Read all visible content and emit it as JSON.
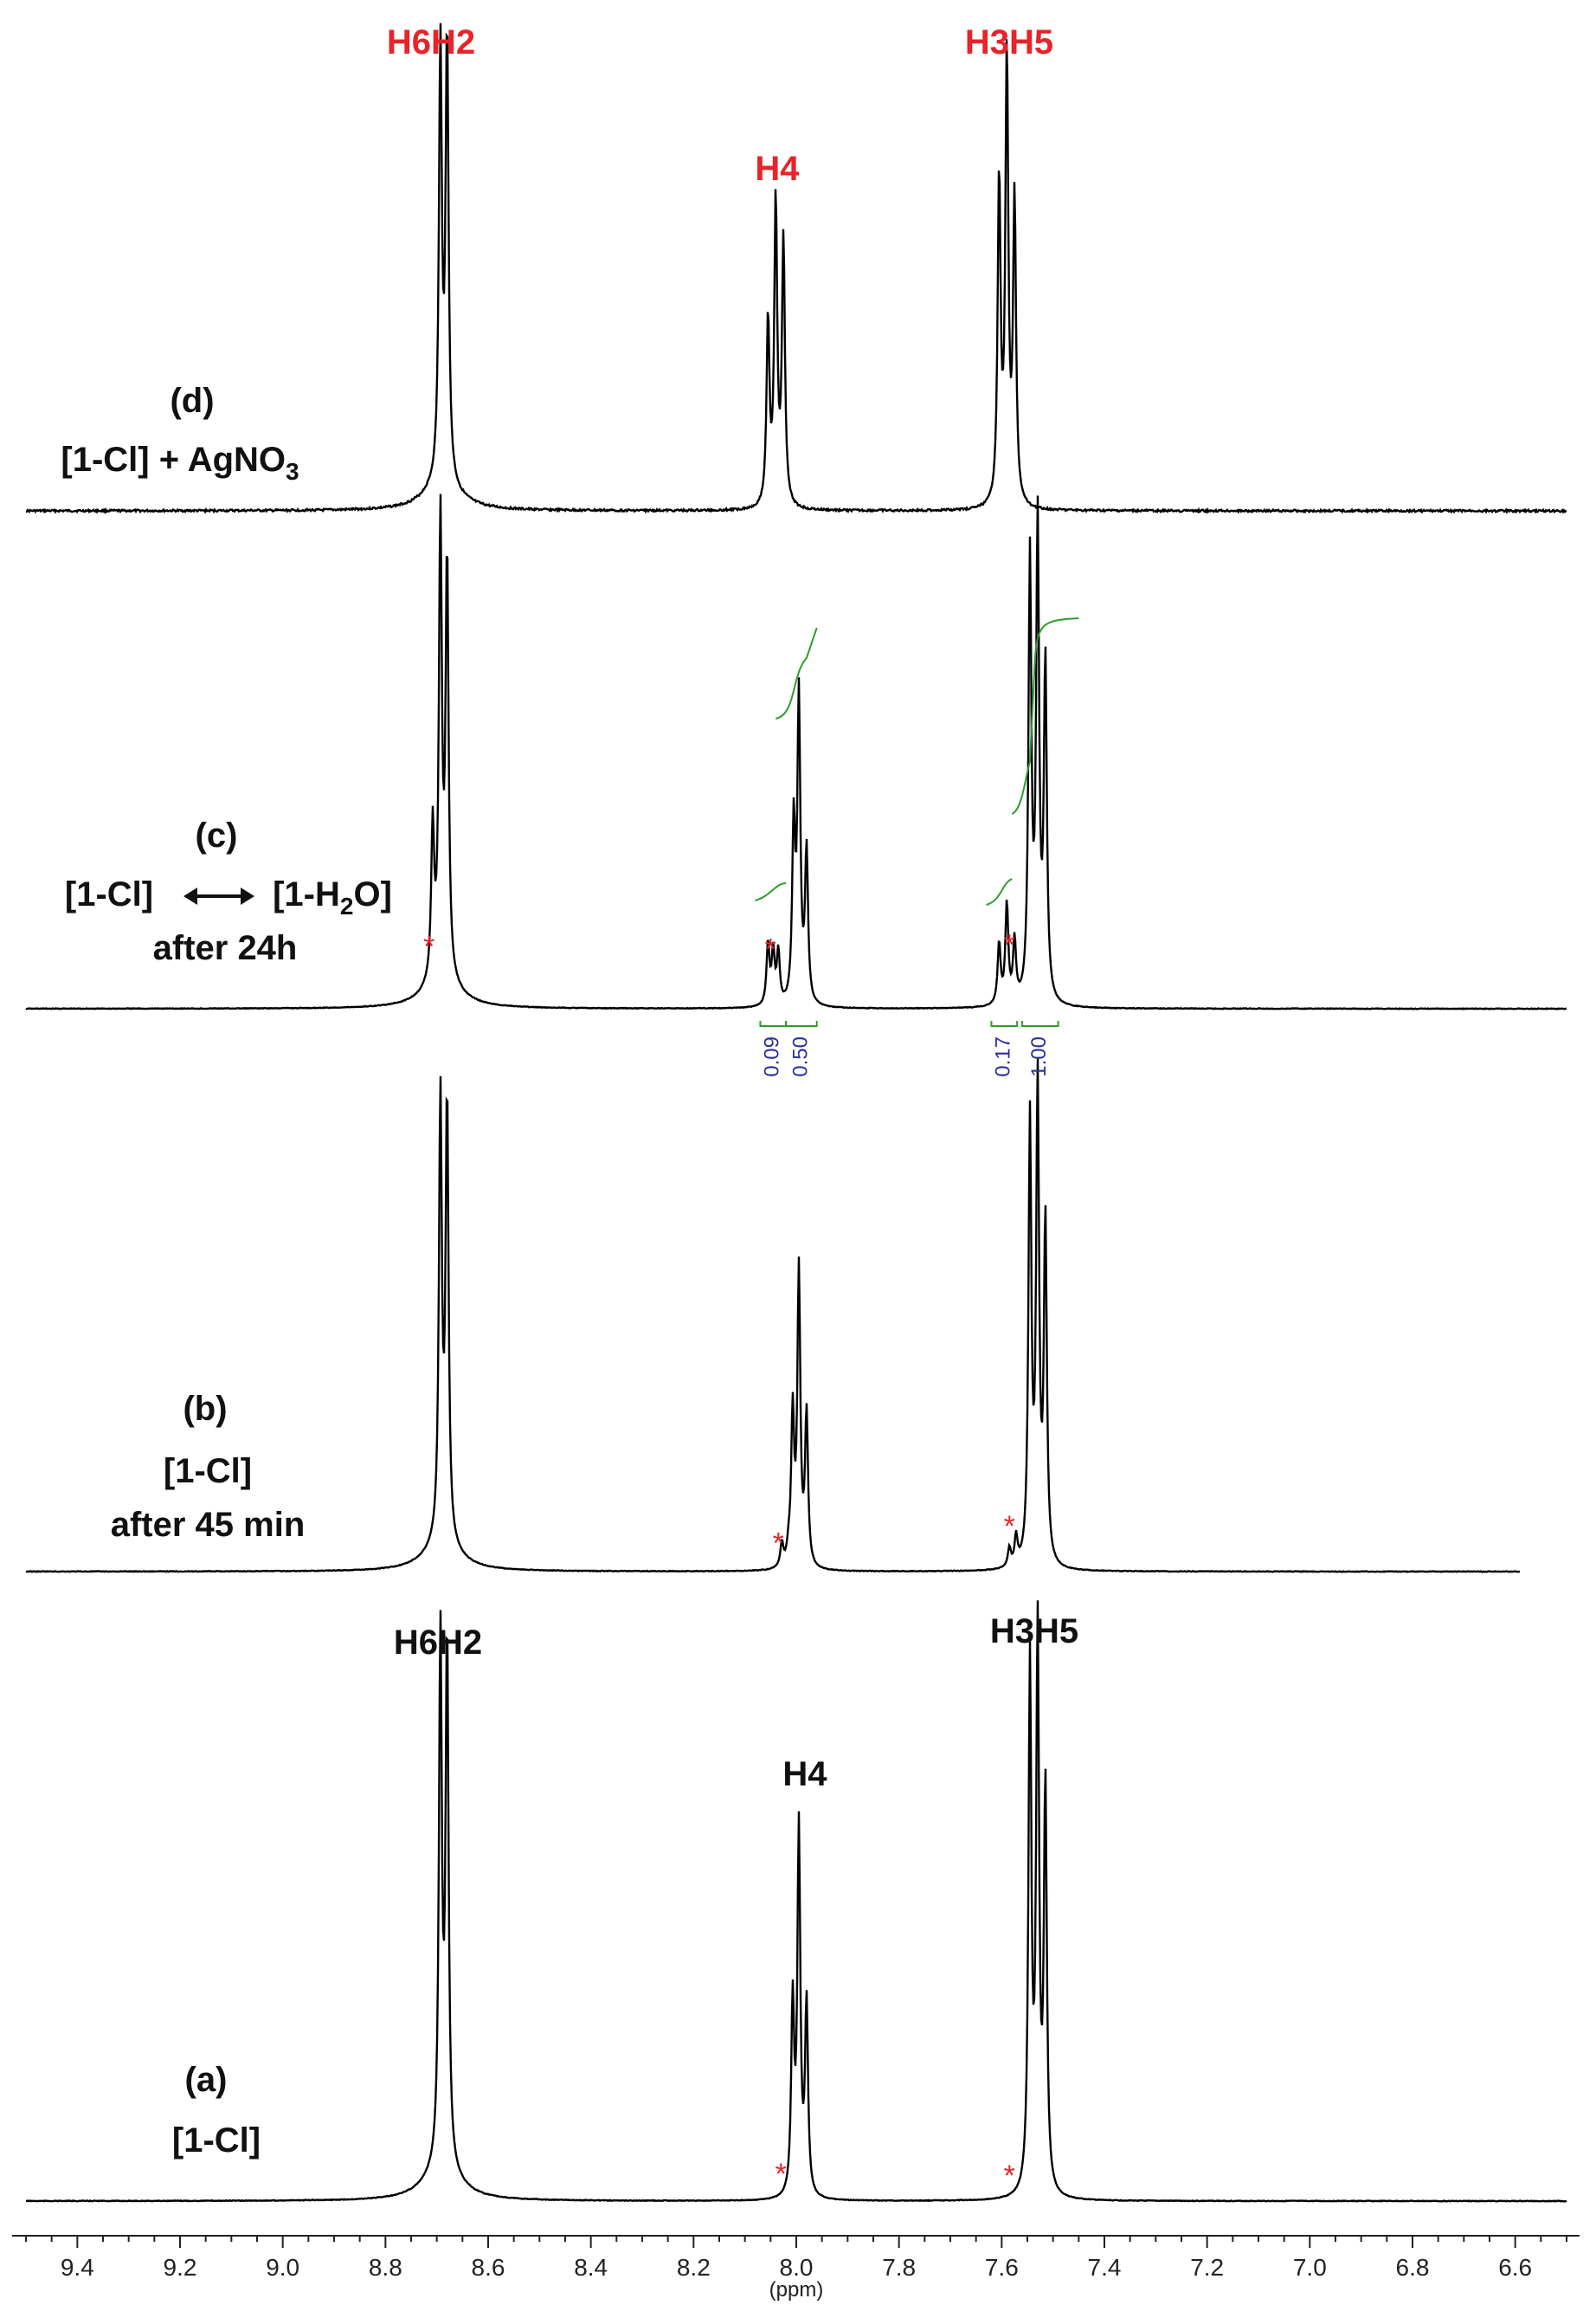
{
  "colors": {
    "spectrum": "#000000",
    "peak_label_red": "#e8232a",
    "impurity_star": "#e8232a",
    "integral_curve": "#2e9d2e",
    "integral_value": "#2b2f9a"
  },
  "chart_data": {
    "type": "line",
    "title": "",
    "xlabel": "(ppm)",
    "ylabel": "",
    "xlim": [
      9.5,
      6.5
    ],
    "x_reversed": true,
    "grid": false,
    "x_ticks": [
      "9.4",
      "9.2",
      "9.0",
      "8.8",
      "8.6",
      "8.4",
      "8.2",
      "8.0",
      "7.8",
      "7.6",
      "7.4",
      "7.2",
      "7.0",
      "6.8",
      "6.6"
    ],
    "spectra": [
      {
        "id": "d",
        "label_line1": "(d)",
        "label_line2": "[1-Cl] + AgNO",
        "label_line2_sub": "3",
        "x_range": [
          9.5,
          6.5
        ],
        "peaks": [
          {
            "ppm": 8.693,
            "height": 0.93
          },
          {
            "ppm": 8.68,
            "height": 0.96
          },
          {
            "ppm": 8.055,
            "height": 0.4
          },
          {
            "ppm": 8.04,
            "height": 0.65
          },
          {
            "ppm": 8.025,
            "height": 0.57
          },
          {
            "ppm": 7.605,
            "height": 0.7
          },
          {
            "ppm": 7.59,
            "height": 0.96
          },
          {
            "ppm": 7.575,
            "height": 0.65
          }
        ],
        "peak_labels": [
          {
            "text": "H6H2",
            "ppm": 8.69
          },
          {
            "text": "H4",
            "ppm": 8.04
          },
          {
            "text": "H3H5",
            "ppm": 7.59
          }
        ],
        "stars_ppm": []
      },
      {
        "id": "c",
        "label_line1": "(c)",
        "label_left": "[1-Cl]",
        "label_right": "[1-H",
        "label_right_sub": "2",
        "label_right_end": "O]",
        "label_line3": "after  24h",
        "x_range": [
          9.5,
          6.5
        ],
        "peaks": [
          {
            "ppm": 8.693,
            "height": 0.96
          },
          {
            "ppm": 8.68,
            "height": 0.88
          },
          {
            "ppm": 8.708,
            "height": 0.32
          },
          {
            "ppm": 8.055,
            "height": 0.13
          },
          {
            "ppm": 8.045,
            "height": 0.11
          },
          {
            "ppm": 8.035,
            "height": 0.11
          },
          {
            "ppm": 8.005,
            "height": 0.37
          },
          {
            "ppm": 7.995,
            "height": 0.64
          },
          {
            "ppm": 7.98,
            "height": 0.32
          },
          {
            "ppm": 7.605,
            "height": 0.13
          },
          {
            "ppm": 7.59,
            "height": 0.21
          },
          {
            "ppm": 7.575,
            "height": 0.13
          },
          {
            "ppm": 7.545,
            "height": 0.93
          },
          {
            "ppm": 7.53,
            "height": 1.0
          },
          {
            "ppm": 7.515,
            "height": 0.71
          }
        ],
        "integrals": [
          {
            "value": "0.09",
            "from": 8.07,
            "to": 8.02
          },
          {
            "value": "0.50",
            "from": 8.02,
            "to": 7.96
          },
          {
            "value": "0.17",
            "from": 7.62,
            "to": 7.57
          },
          {
            "value": "1.00",
            "from": 7.56,
            "to": 7.49
          }
        ],
        "stars_ppm": [
          8.715,
          8.05,
          7.585
        ]
      },
      {
        "id": "b",
        "label_line1": "(b)",
        "label_line2": "[1-Cl]",
        "label_line3": "after 45 min",
        "x_range": [
          9.5,
          6.59
        ],
        "peaks": [
          {
            "ppm": 8.693,
            "height": 0.93
          },
          {
            "ppm": 8.68,
            "height": 0.93
          },
          {
            "ppm": 8.028,
            "height": 0.05
          },
          {
            "ppm": 8.015,
            "height": 0.03
          },
          {
            "ppm": 8.007,
            "height": 0.32
          },
          {
            "ppm": 7.995,
            "height": 0.62
          },
          {
            "ppm": 7.98,
            "height": 0.32
          },
          {
            "ppm": 7.585,
            "height": 0.04
          },
          {
            "ppm": 7.572,
            "height": 0.06
          },
          {
            "ppm": 7.545,
            "height": 0.93
          },
          {
            "ppm": 7.53,
            "height": 1.0
          },
          {
            "ppm": 7.515,
            "height": 0.72
          }
        ],
        "stars_ppm": [
          8.035,
          7.585
        ]
      },
      {
        "id": "a",
        "label_line1": "(a)",
        "label_line2": "[1-Cl]",
        "x_range": [
          9.5,
          6.5
        ],
        "peaks": [
          {
            "ppm": 8.693,
            "height": 0.94
          },
          {
            "ppm": 8.68,
            "height": 0.94
          },
          {
            "ppm": 8.007,
            "height": 0.34
          },
          {
            "ppm": 7.995,
            "height": 0.65
          },
          {
            "ppm": 7.98,
            "height": 0.34
          },
          {
            "ppm": 7.545,
            "height": 0.94
          },
          {
            "ppm": 7.53,
            "height": 0.99
          },
          {
            "ppm": 7.515,
            "height": 0.72
          }
        ],
        "peak_labels": [
          {
            "text": "H6H2",
            "ppm": 8.69
          },
          {
            "text": "H4",
            "ppm": 7.99
          },
          {
            "text": "H3H5",
            "ppm": 7.53
          }
        ],
        "stars_ppm": [
          8.03,
          7.585
        ]
      }
    ]
  }
}
